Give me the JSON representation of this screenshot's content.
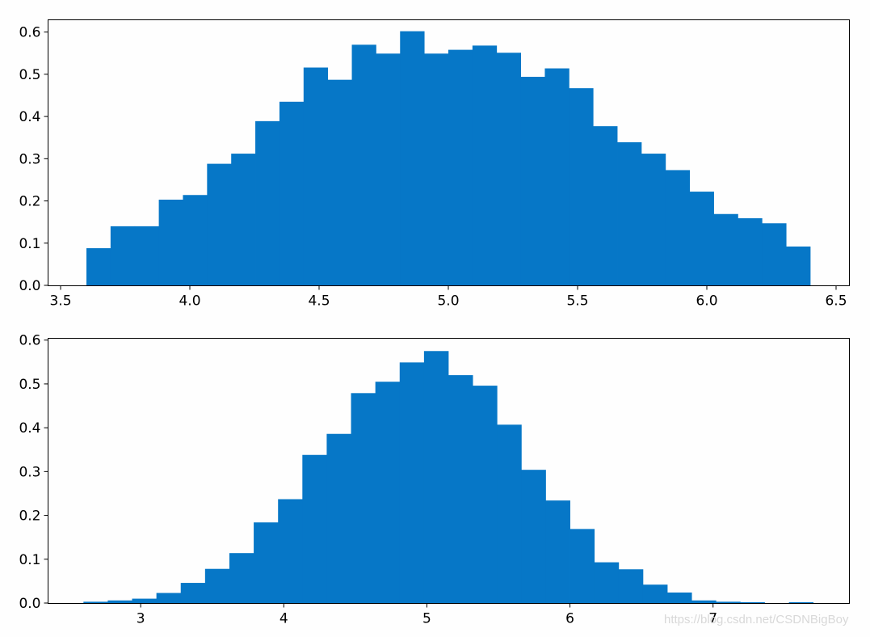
{
  "colors": {
    "bar": "#0677c7",
    "axis": "#000000",
    "background": "#fefefe"
  },
  "watermark": "https://blog.csdn.net/CSDNBigBoy",
  "chart_data": [
    {
      "type": "bar",
      "subtype": "histogram",
      "bin_edges": [
        3.6,
        3.6933,
        3.7867,
        3.88,
        3.9733,
        4.0667,
        4.16,
        4.2533,
        4.3467,
        4.44,
        4.5333,
        4.6267,
        4.72,
        4.8133,
        4.9067,
        5.0,
        5.0933,
        5.1867,
        5.28,
        5.3733,
        5.4667,
        5.56,
        5.6533,
        5.7467,
        5.84,
        5.9333,
        6.0267,
        6.12,
        6.2133,
        6.3067,
        6.4
      ],
      "values": [
        0.088,
        0.14,
        0.14,
        0.203,
        0.214,
        0.288,
        0.312,
        0.389,
        0.435,
        0.516,
        0.487,
        0.57,
        0.549,
        0.602,
        0.549,
        0.558,
        0.568,
        0.551,
        0.494,
        0.514,
        0.467,
        0.377,
        0.339,
        0.312,
        0.273,
        0.222,
        0.169,
        0.159,
        0.147,
        0.092
      ],
      "xlim": [
        3.45,
        6.55
      ],
      "ylim": [
        0,
        0.63
      ],
      "xticks": [
        3.5,
        4.0,
        4.5,
        5.0,
        5.5,
        6.0,
        6.5
      ],
      "xtick_labels": [
        "3.5",
        "4.0",
        "4.5",
        "5.0",
        "5.5",
        "6.0",
        "6.5"
      ],
      "yticks": [
        0,
        0.1,
        0.2,
        0.3,
        0.4,
        0.5,
        0.6
      ],
      "ytick_labels": [
        "0.0",
        "0.1",
        "0.2",
        "0.3",
        "0.4",
        "0.5",
        "0.6"
      ],
      "title": "",
      "xlabel": "",
      "ylabel": "",
      "grid": false
    },
    {
      "type": "bar",
      "subtype": "histogram",
      "bin_edges": [
        2.6,
        2.77,
        2.94,
        3.11,
        3.28,
        3.45,
        3.62,
        3.79,
        3.96,
        4.13,
        4.3,
        4.47,
        4.64,
        4.81,
        4.98,
        5.15,
        5.32,
        5.49,
        5.66,
        5.83,
        6.0,
        6.17,
        6.34,
        6.51,
        6.68,
        6.85,
        7.02,
        7.19,
        7.36,
        7.53,
        7.7
      ],
      "values": [
        0.003,
        0.006,
        0.01,
        0.023,
        0.046,
        0.078,
        0.114,
        0.184,
        0.237,
        0.338,
        0.386,
        0.479,
        0.505,
        0.549,
        0.575,
        0.52,
        0.496,
        0.407,
        0.304,
        0.234,
        0.169,
        0.093,
        0.077,
        0.042,
        0.024,
        0.006,
        0.003,
        0.002,
        0.0,
        0.002
      ],
      "xlim": [
        2.35,
        7.95
      ],
      "ylim": [
        0,
        0.605
      ],
      "xticks": [
        3,
        4,
        5,
        6,
        7
      ],
      "xtick_labels": [
        "3",
        "4",
        "5",
        "6",
        "7"
      ],
      "yticks": [
        0,
        0.1,
        0.2,
        0.3,
        0.4,
        0.5,
        0.6
      ],
      "ytick_labels": [
        "0.0",
        "0.1",
        "0.2",
        "0.3",
        "0.4",
        "0.5",
        "0.6"
      ],
      "title": "",
      "xlabel": "",
      "ylabel": "",
      "grid": false
    }
  ]
}
